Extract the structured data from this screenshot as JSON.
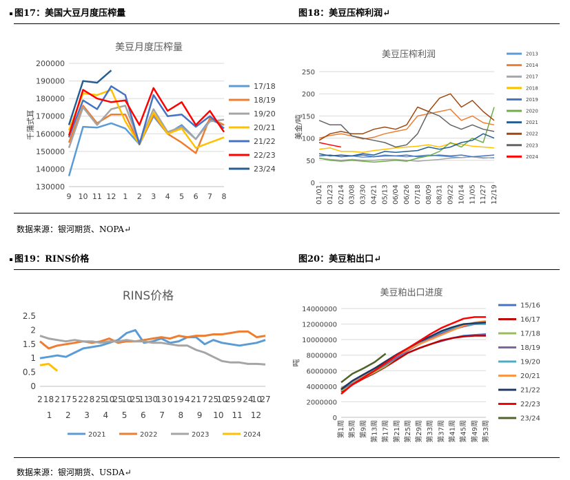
{
  "figures": {
    "f17": {
      "title": "图17：美国大豆月度压榨量"
    },
    "f18": {
      "title": "图18：美豆压榨利润↵"
    },
    "f19": {
      "title": "图19：RINS价格"
    },
    "f20": {
      "title": "图20：美豆粕出口↵"
    }
  },
  "sources": {
    "top": "数据来源：银河期货、NOPA↵",
    "bottom": "数据来源：银河期货、USDA↵"
  },
  "chart_data": [
    {
      "id": "c17",
      "type": "line",
      "title": "美豆月度压榨量",
      "xlabel": "",
      "ylabel": "千蒲式耳",
      "categories": [
        "9",
        "10",
        "11",
        "12",
        "1",
        "2",
        "3",
        "4",
        "5",
        "6",
        "7",
        "8"
      ],
      "ylim": [
        130000,
        200000
      ],
      "yticks": [
        "130000",
        "140000",
        "150000",
        "160000",
        "170000",
        "180000",
        "190000",
        "200000"
      ],
      "legend_position": "right",
      "series": [
        {
          "name": "17/18",
          "color": "#5b9bd5",
          "values": [
            136000,
            164000,
            163500,
            166000,
            163000,
            154000,
            170000,
            160000,
            165000,
            157000,
            168000,
            165000
          ]
        },
        {
          "name": "18/19",
          "color": "#ed7d31",
          "values": [
            155000,
            176000,
            166000,
            171000,
            171000,
            154000,
            171000,
            160000,
            155000,
            149000,
            169000,
            165000
          ]
        },
        {
          "name": "19/20",
          "color": "#a5a5a5",
          "values": [
            152000,
            175000,
            165000,
            174000,
            176000,
            155000,
            174000,
            161000,
            164000,
            157000,
            167000,
            168000
          ]
        },
        {
          "name": "20/21",
          "color": "#ffc000",
          "values": [
            162000,
            183000,
            182000,
            185000,
            167000,
            154000,
            172000,
            160000,
            163000,
            152000,
            155000,
            158000
          ]
        },
        {
          "name": "21/22",
          "color": "#4472c4",
          "values": [
            158000,
            179000,
            174000,
            187000,
            182000,
            154000,
            182000,
            170000,
            171000,
            164000,
            170000,
            163000
          ]
        },
        {
          "name": "22/23",
          "color": "#ff0000",
          "values": [
            159000,
            185000,
            180000,
            178000,
            179000,
            165000,
            186000,
            173000,
            178000,
            165000,
            173000,
            161000
          ]
        },
        {
          "name": "23/24",
          "color": "#255e91",
          "values": [
            165000,
            190000,
            189000,
            196000,
            null,
            null,
            null,
            null,
            null,
            null,
            null,
            null
          ]
        }
      ]
    },
    {
      "id": "c18",
      "type": "line",
      "title": "美豆压榨利润",
      "xlabel": "",
      "ylabel": "美金/吨",
      "categories": [
        "01/01",
        "01/23",
        "02/14",
        "03/08",
        "03/30",
        "04/21",
        "05/13",
        "06/04",
        "06/26",
        "07/18",
        "08/09",
        "08/31",
        "09/22",
        "10/14",
        "11/05",
        "11/27",
        "12/19"
      ],
      "ylim": [
        0,
        250
      ],
      "yticks": [
        "0",
        "50",
        "100",
        "150",
        "200",
        "250"
      ],
      "legend_position": "right",
      "series": [
        {
          "name": "2013",
          "color": "#5b9bd5",
          "values": [
            60,
            62,
            58,
            60,
            57,
            58,
            62,
            60,
            58,
            60,
            62,
            60,
            58,
            56,
            58,
            55,
            56
          ]
        },
        {
          "name": "2014",
          "color": "#ed7d31",
          "values": [
            100,
            106,
            110,
            105,
            98,
            102,
            110,
            115,
            120,
            150,
            155,
            160,
            165,
            140,
            150,
            135,
            130
          ]
        },
        {
          "name": "2017",
          "color": "#a5a5a5",
          "values": [
            55,
            52,
            50,
            52,
            50,
            50,
            52,
            52,
            50,
            48,
            50,
            52,
            55,
            56,
            58,
            56,
            55
          ]
        },
        {
          "name": "2018",
          "color": "#ffc000",
          "values": [
            75,
            78,
            70,
            70,
            68,
            72,
            75,
            78,
            80,
            82,
            85,
            80,
            88,
            86,
            82,
            80,
            78
          ]
        },
        {
          "name": "2019",
          "color": "#4472c4",
          "values": [
            60,
            62,
            58,
            60,
            62,
            58,
            60,
            60,
            62,
            58,
            60,
            62,
            60,
            62,
            58,
            60,
            62
          ]
        },
        {
          "name": "2020",
          "color": "#70ad47",
          "values": [
            55,
            50,
            48,
            50,
            48,
            46,
            48,
            50,
            48,
            55,
            60,
            70,
            90,
            80,
            100,
            90,
            170
          ]
        },
        {
          "name": "2021",
          "color": "#255e91",
          "values": [
            65,
            60,
            62,
            60,
            65,
            62,
            70,
            68,
            70,
            72,
            80,
            75,
            80,
            90,
            95,
            110,
            100
          ]
        },
        {
          "name": "2022",
          "color": "#9e480e",
          "values": [
            95,
            110,
            115,
            110,
            110,
            120,
            125,
            120,
            130,
            170,
            160,
            190,
            200,
            170,
            185,
            160,
            140
          ]
        },
        {
          "name": "2023",
          "color": "#636363",
          "values": [
            140,
            130,
            130,
            105,
            100,
            95,
            90,
            80,
            85,
            110,
            160,
            150,
            130,
            120,
            130,
            120,
            115
          ]
        },
        {
          "name": "2024",
          "color": "#ff0000",
          "values": [
            90,
            85,
            80,
            null,
            null,
            null,
            null,
            null,
            null,
            null,
            null,
            null,
            null,
            null,
            null,
            null,
            null
          ]
        }
      ]
    },
    {
      "id": "c19",
      "type": "line",
      "title": "RINS价格",
      "xlabel": "",
      "ylabel": "",
      "categories": [
        "2",
        "18",
        "2",
        "17",
        "5",
        "22",
        "8",
        "25",
        "10",
        "25",
        "10",
        "25",
        "11",
        "30",
        "13",
        "0",
        "19",
        "4",
        "21",
        "7",
        "25",
        "10",
        "25",
        "9",
        "24",
        "10",
        "27"
      ],
      "month_labels": [
        "1",
        "2",
        "3",
        "4",
        "5",
        "6",
        "7",
        "8",
        "9",
        "10",
        "11",
        "12"
      ],
      "ylim": [
        0,
        2.5
      ],
      "yticks": [
        "0",
        "0.5",
        "1",
        "1.5",
        "2",
        "2.5"
      ],
      "legend_position": "bottom",
      "series": [
        {
          "name": "2021",
          "color": "#5b9bd5",
          "values": [
            1.0,
            1.05,
            1.1,
            1.05,
            1.2,
            1.35,
            1.4,
            1.45,
            1.55,
            1.65,
            1.9,
            2.0,
            1.55,
            1.6,
            1.7,
            1.55,
            1.6,
            1.75,
            1.75,
            1.5,
            1.65,
            1.55,
            1.5,
            1.45,
            1.5,
            1.55,
            1.65
          ]
        },
        {
          "name": "2022",
          "color": "#ed7d31",
          "values": [
            1.6,
            1.35,
            1.45,
            1.5,
            1.55,
            1.6,
            1.55,
            1.6,
            1.7,
            1.55,
            1.6,
            1.6,
            1.65,
            1.7,
            1.75,
            1.7,
            1.8,
            1.75,
            1.8,
            1.8,
            1.85,
            1.85,
            1.9,
            1.95,
            1.95,
            1.75,
            1.8
          ]
        },
        {
          "name": "2023",
          "color": "#a5a5a5",
          "values": [
            1.8,
            1.7,
            1.65,
            1.6,
            1.65,
            1.6,
            1.6,
            1.55,
            1.6,
            1.6,
            1.65,
            1.6,
            1.6,
            1.55,
            1.55,
            1.5,
            1.45,
            1.45,
            1.3,
            1.2,
            1.05,
            0.9,
            0.85,
            0.85,
            0.8,
            0.8,
            0.78
          ]
        },
        {
          "name": "2024",
          "color": "#ffc000",
          "values": [
            0.75,
            0.8,
            0.55,
            null,
            null,
            null,
            null,
            null,
            null,
            null,
            null,
            null,
            null,
            null,
            null,
            null,
            null,
            null,
            null,
            null,
            null,
            null,
            null,
            null,
            null,
            null,
            null
          ]
        }
      ]
    },
    {
      "id": "c20",
      "type": "line",
      "title": "美豆粕出口进度",
      "xlabel": "",
      "ylabel": "吨",
      "categories": [
        "第1周",
        "第5周",
        "第9周",
        "第13周",
        "第17周",
        "第21周",
        "第25周",
        "第29周",
        "第33周",
        "第37周",
        "第41周",
        "第45周",
        "第49周",
        "第53周"
      ],
      "ylim": [
        0,
        14000000
      ],
      "yticks": [
        "0",
        "2000000",
        "4000000",
        "6000000",
        "8000000",
        "10000000",
        "12000000",
        "14000000"
      ],
      "legend_position": "right",
      "series": [
        {
          "name": "15/16",
          "color": "#4472c4",
          "values": [
            3500000,
            4500000,
            5300000,
            6000000,
            6700000,
            7600000,
            8300000,
            8900000,
            9400000,
            9800000,
            10200000,
            10500000,
            10600000,
            10700000
          ]
        },
        {
          "name": "16/17",
          "color": "#c00000",
          "values": [
            3300000,
            4200000,
            5000000,
            5700000,
            6500000,
            7400000,
            8300000,
            8900000,
            9400000,
            9900000,
            10200000,
            10400000,
            10500000,
            10500000
          ]
        },
        {
          "name": "17/18",
          "color": "#9bbb59",
          "values": [
            3400000,
            4300000,
            5100000,
            5800000,
            6600000,
            7700000,
            8600000,
            9400000,
            10100000,
            10700000,
            11300000,
            11800000,
            12200000,
            12300000
          ]
        },
        {
          "name": "18/19",
          "color": "#8064a2",
          "values": [
            3600000,
            4400000,
            5200000,
            6000000,
            6800000,
            7700000,
            8600000,
            9400000,
            10200000,
            10800000,
            11300000,
            11700000,
            12000000,
            12100000
          ]
        },
        {
          "name": "19/20",
          "color": "#4bacc6",
          "values": [
            3800000,
            4500000,
            5200000,
            6000000,
            7000000,
            8000000,
            8900000,
            9700000,
            10400000,
            11000000,
            11500000,
            11800000,
            12000000,
            12000000
          ]
        },
        {
          "name": "20/21",
          "color": "#f79646",
          "values": [
            3700000,
            4600000,
            5400000,
            6300000,
            7200000,
            8000000,
            8700000,
            9400000,
            10000000,
            10600000,
            11200000,
            11800000,
            12200000,
            12400000
          ]
        },
        {
          "name": "21/22",
          "color": "#1f3864",
          "values": [
            3600000,
            4700000,
            5500000,
            6300000,
            7200000,
            8100000,
            8900000,
            9700000,
            10400000,
            11100000,
            11600000,
            12000000,
            12100000,
            12200000
          ]
        },
        {
          "name": "22/23",
          "color": "#ff0000",
          "values": [
            3000000,
            4200000,
            5100000,
            6000000,
            7000000,
            8000000,
            8900000,
            9800000,
            10700000,
            11500000,
            12100000,
            12700000,
            12900000,
            12900000
          ]
        },
        {
          "name": "23/24",
          "color": "#4f6228",
          "values": [
            4500000,
            5600000,
            6300000,
            7100000,
            8200000,
            null,
            null,
            null,
            null,
            null,
            null,
            null,
            null,
            null
          ]
        }
      ]
    }
  ]
}
